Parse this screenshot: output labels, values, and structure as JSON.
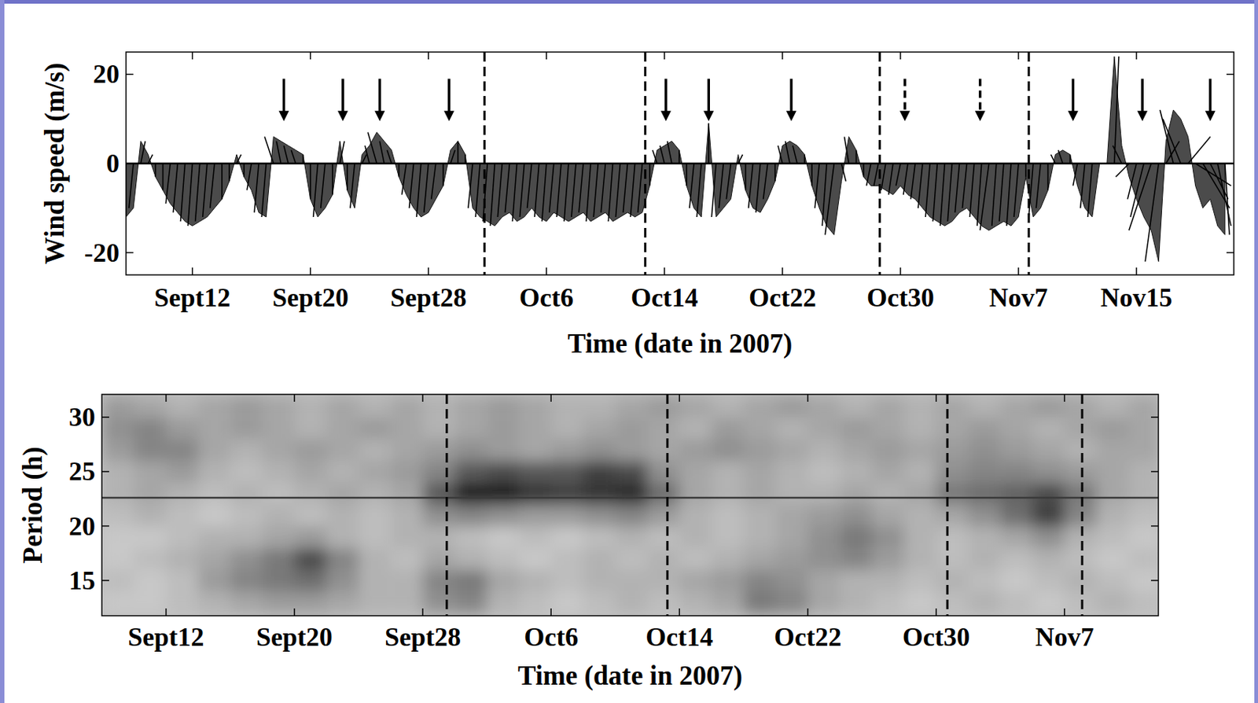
{
  "chart_data": [
    {
      "type": "stick",
      "xlabel": "Time (date in 2007)",
      "ylabel": "Wind speed (m/s)",
      "xlim": [
        7.5,
        82.6
      ],
      "ylim": [
        -25,
        25
      ],
      "xticks": [
        {
          "value": 12,
          "label": "Sept12"
        },
        {
          "value": 20,
          "label": "Sept20"
        },
        {
          "value": 28,
          "label": "Sept28"
        },
        {
          "value": 36,
          "label": "Oct6"
        },
        {
          "value": 44,
          "label": "Oct14"
        },
        {
          "value": 52,
          "label": "Oct22"
        },
        {
          "value": 60,
          "label": "Oct30"
        },
        {
          "value": 68,
          "label": "Nov7"
        },
        {
          "value": 76,
          "label": "Nov15"
        }
      ],
      "yticks": [
        -20,
        0,
        20
      ],
      "x": [
        7.5,
        8,
        8.5,
        9,
        9.5,
        10,
        10.5,
        11,
        11.5,
        12,
        12.5,
        13,
        13.5,
        14,
        14.5,
        15,
        15.5,
        16,
        16.5,
        17,
        17.5,
        18,
        18.5,
        19,
        19.5,
        20,
        20.5,
        21,
        21.5,
        22,
        22.5,
        23,
        23.5,
        24,
        24.5,
        25,
        25.5,
        26,
        26.5,
        27,
        27.5,
        28,
        28.5,
        29,
        29.5,
        30,
        30.5,
        31,
        31.5,
        32,
        32.5,
        33,
        33.5,
        34,
        34.5,
        35,
        35.5,
        36,
        36.5,
        37,
        37.5,
        38,
        38.5,
        39,
        39.5,
        40,
        40.5,
        41,
        41.5,
        42,
        42.5,
        43,
        43.5,
        44,
        44.5,
        45,
        45.5,
        46,
        46.5,
        47,
        47.5,
        48,
        48.5,
        49,
        49.5,
        50,
        50.5,
        51,
        51.5,
        52,
        52.5,
        53,
        53.5,
        54,
        54.5,
        55,
        55.5,
        56,
        56.5,
        57,
        57.5,
        58,
        58.5,
        59,
        59.5,
        60,
        60.5,
        61,
        61.5,
        62,
        62.5,
        63,
        63.5,
        64,
        64.5,
        65,
        65.5,
        66,
        66.5,
        67,
        67.5,
        68,
        68.5,
        69,
        69.5,
        70,
        70.5,
        71,
        71.5,
        72,
        72.5,
        73,
        73.5,
        74,
        74.5,
        75,
        75.5,
        76,
        76.5,
        77,
        77.5,
        78,
        78.5,
        79,
        79.5,
        80,
        80.5,
        81,
        81.5,
        82
      ],
      "u": [
        -1,
        -1,
        1,
        1,
        0,
        0,
        -1,
        -1,
        -1,
        -1,
        -1,
        -1,
        -1,
        0,
        0,
        1,
        0,
        -1,
        -1,
        -1,
        -2,
        -1,
        -1,
        -1,
        0,
        0,
        -1,
        -1,
        0,
        1,
        0,
        -1,
        1,
        -1,
        -2,
        -1,
        -1,
        0,
        -1,
        -1,
        -1,
        -1,
        -1,
        0,
        1,
        0,
        0,
        -1,
        -1,
        -1,
        -1,
        -1,
        -1,
        -1,
        -1,
        -1,
        -1,
        -1,
        -1,
        -1,
        -1,
        -1,
        -1,
        -1,
        -1,
        -1,
        -1,
        -1,
        -1,
        -1,
        -1,
        0,
        -1,
        -1,
        -1,
        0,
        0,
        -1,
        -1,
        0,
        -1,
        -1,
        -1,
        1,
        0,
        -1,
        -1,
        -1,
        0,
        -1,
        -1,
        -1,
        0,
        0,
        -1,
        -1,
        -2,
        1,
        -1,
        0,
        0,
        -1,
        -1,
        -1,
        -1,
        -1,
        -1,
        -1,
        -1,
        -1,
        -1,
        -1,
        -1,
        -1,
        -1,
        -1,
        -1,
        -2,
        -1,
        -1,
        -1,
        -1,
        0,
        -1,
        -1,
        0,
        -1,
        -1,
        0,
        -1,
        -1,
        -1,
        0,
        0,
        1,
        -2,
        -3,
        -2,
        -3,
        -5,
        -3,
        3,
        -3,
        -4,
        5,
        8,
        6,
        4,
        3,
        1
      ],
      "v": [
        -12,
        -10,
        5,
        2,
        -3,
        -6,
        -9,
        -11,
        -13,
        -14,
        -13,
        -12,
        -10,
        -8,
        -4,
        2,
        -3,
        -6,
        -11,
        -12,
        6,
        5,
        4,
        3,
        2,
        -8,
        -12,
        -10,
        -7,
        5,
        -6,
        -10,
        2,
        4,
        7,
        5,
        3,
        -3,
        -7,
        -10,
        -12,
        -11,
        -8,
        -5,
        3,
        5,
        2,
        -10,
        -12,
        -13,
        -14,
        -12,
        -11,
        -13,
        -12,
        -10,
        -12,
        -13,
        -11,
        -12,
        -13,
        -12,
        -11,
        -13,
        -12,
        -11,
        -13,
        -12,
        -11,
        -12,
        -11,
        -5,
        3,
        4,
        5,
        3,
        -5,
        -10,
        -12,
        9,
        -12,
        -10,
        -8,
        2,
        -6,
        -10,
        -11,
        -8,
        -4,
        4,
        5,
        4,
        2,
        -5,
        -10,
        -14,
        -16,
        -4,
        6,
        3,
        -3,
        -5,
        -5,
        -6,
        -7,
        -5,
        -7,
        -8,
        -10,
        -12,
        -13,
        -14,
        -13,
        -11,
        -10,
        -12,
        -14,
        -15,
        -14,
        -13,
        -14,
        -12,
        -3,
        -12,
        -10,
        -6,
        2,
        3,
        2,
        -5,
        -10,
        -12,
        0,
        0,
        24,
        4,
        -3,
        -8,
        -12,
        -15,
        -22,
        5,
        12,
        10,
        6,
        -5,
        -10,
        -8,
        -14,
        -16
      ],
      "dashed_lines": [
        31.8,
        42.7,
        58.6,
        68.7
      ],
      "arrows_solid": [
        18.2,
        22.2,
        24.7,
        29.4,
        44.1,
        47,
        52.6,
        71.7,
        76.4,
        81
      ],
      "arrows_dashed": [
        60.3,
        65.4
      ]
    },
    {
      "type": "heatmap",
      "xlabel": "Time (date in 2007)",
      "ylabel": "Period (h)",
      "xlim": [
        8,
        73.85
      ],
      "ylim": [
        11.75,
        32.1
      ],
      "xticks": [
        {
          "value": 12,
          "label": "Sept12"
        },
        {
          "value": 20,
          "label": "Sept20"
        },
        {
          "value": 28,
          "label": "Sept28"
        },
        {
          "value": 36,
          "label": "Oct6"
        },
        {
          "value": 44,
          "label": "Oct14"
        },
        {
          "value": 52,
          "label": "Oct22"
        },
        {
          "value": 60,
          "label": "Oct30"
        },
        {
          "value": 68,
          "label": "Nov7"
        }
      ],
      "yticks": [
        15,
        20,
        25,
        30
      ],
      "x": [
        9,
        11,
        13,
        15,
        17,
        19,
        21,
        23,
        25,
        27,
        29,
        31,
        33,
        35,
        37,
        39,
        41,
        43,
        45,
        47,
        49,
        51,
        53,
        55,
        57,
        59,
        61,
        63,
        65,
        67,
        69,
        71,
        73
      ],
      "y": [
        13,
        15,
        17,
        19,
        21,
        23,
        25,
        27,
        29,
        31
      ],
      "z": [
        [
          0.2,
          0.2,
          0.25,
          0.3,
          0.35,
          0.4,
          0.4,
          0.35,
          0.3,
          0.3,
          0.45,
          0.5,
          0.3,
          0.25,
          0.2,
          0.25,
          0.3,
          0.25,
          0.3,
          0.35,
          0.55,
          0.5,
          0.35,
          0.3,
          0.25,
          0.2,
          0.25,
          0.3,
          0.25,
          0.2,
          0.25,
          0.3,
          0.25
        ],
        [
          0.25,
          0.2,
          0.25,
          0.4,
          0.5,
          0.55,
          0.6,
          0.45,
          0.3,
          0.3,
          0.5,
          0.55,
          0.35,
          0.3,
          0.25,
          0.3,
          0.3,
          0.3,
          0.35,
          0.4,
          0.5,
          0.45,
          0.35,
          0.3,
          0.3,
          0.25,
          0.3,
          0.25,
          0.2,
          0.25,
          0.3,
          0.25,
          0.2
        ],
        [
          0.2,
          0.25,
          0.3,
          0.35,
          0.45,
          0.55,
          0.75,
          0.5,
          0.3,
          0.25,
          0.35,
          0.3,
          0.25,
          0.2,
          0.25,
          0.3,
          0.25,
          0.3,
          0.25,
          0.3,
          0.35,
          0.4,
          0.45,
          0.5,
          0.4,
          0.3,
          0.25,
          0.3,
          0.25,
          0.3,
          0.25,
          0.2,
          0.25
        ],
        [
          0.2,
          0.2,
          0.25,
          0.3,
          0.3,
          0.35,
          0.4,
          0.3,
          0.25,
          0.3,
          0.3,
          0.25,
          0.2,
          0.25,
          0.2,
          0.25,
          0.3,
          0.25,
          0.3,
          0.25,
          0.3,
          0.35,
          0.45,
          0.55,
          0.45,
          0.3,
          0.25,
          0.3,
          0.35,
          0.45,
          0.3,
          0.25,
          0.2
        ],
        [
          0.25,
          0.3,
          0.25,
          0.2,
          0.25,
          0.3,
          0.25,
          0.3,
          0.25,
          0.3,
          0.45,
          0.5,
          0.45,
          0.4,
          0.4,
          0.45,
          0.5,
          0.4,
          0.3,
          0.25,
          0.3,
          0.35,
          0.4,
          0.45,
          0.35,
          0.3,
          0.35,
          0.45,
          0.6,
          0.8,
          0.5,
          0.3,
          0.25
        ],
        [
          0.3,
          0.35,
          0.3,
          0.25,
          0.3,
          0.25,
          0.3,
          0.35,
          0.3,
          0.35,
          0.7,
          0.95,
          0.95,
          0.85,
          0.8,
          0.85,
          0.9,
          0.6,
          0.35,
          0.3,
          0.35,
          0.3,
          0.3,
          0.35,
          0.3,
          0.35,
          0.55,
          0.6,
          0.65,
          0.75,
          0.55,
          0.35,
          0.3
        ],
        [
          0.3,
          0.35,
          0.4,
          0.3,
          0.25,
          0.3,
          0.35,
          0.3,
          0.35,
          0.4,
          0.5,
          0.7,
          0.75,
          0.7,
          0.7,
          0.8,
          0.75,
          0.45,
          0.35,
          0.3,
          0.35,
          0.3,
          0.25,
          0.3,
          0.35,
          0.3,
          0.45,
          0.5,
          0.5,
          0.45,
          0.4,
          0.35,
          0.3
        ],
        [
          0.4,
          0.5,
          0.5,
          0.35,
          0.3,
          0.35,
          0.4,
          0.35,
          0.3,
          0.35,
          0.4,
          0.45,
          0.4,
          0.35,
          0.4,
          0.45,
          0.4,
          0.35,
          0.4,
          0.45,
          0.4,
          0.35,
          0.3,
          0.35,
          0.4,
          0.35,
          0.4,
          0.45,
          0.4,
          0.35,
          0.3,
          0.35,
          0.35
        ],
        [
          0.45,
          0.5,
          0.4,
          0.35,
          0.4,
          0.35,
          0.3,
          0.35,
          0.4,
          0.35,
          0.3,
          0.35,
          0.4,
          0.35,
          0.3,
          0.35,
          0.4,
          0.35,
          0.3,
          0.4,
          0.35,
          0.3,
          0.35,
          0.4,
          0.35,
          0.3,
          0.35,
          0.4,
          0.35,
          0.3,
          0.35,
          0.4,
          0.35
        ],
        [
          0.4,
          0.35,
          0.3,
          0.35,
          0.4,
          0.35,
          0.3,
          0.35,
          0.3,
          0.35,
          0.3,
          0.35,
          0.4,
          0.35,
          0.3,
          0.3,
          0.35,
          0.4,
          0.35,
          0.3,
          0.35,
          0.4,
          0.35,
          0.3,
          0.35,
          0.3,
          0.35,
          0.3,
          0.35,
          0.4,
          0.35,
          0.3,
          0.35
        ]
      ],
      "zlim": [
        0,
        1
      ],
      "dashed_lines": [
        29.5,
        43.25,
        60.7,
        69.1
      ],
      "reference_period": 22.6
    }
  ]
}
